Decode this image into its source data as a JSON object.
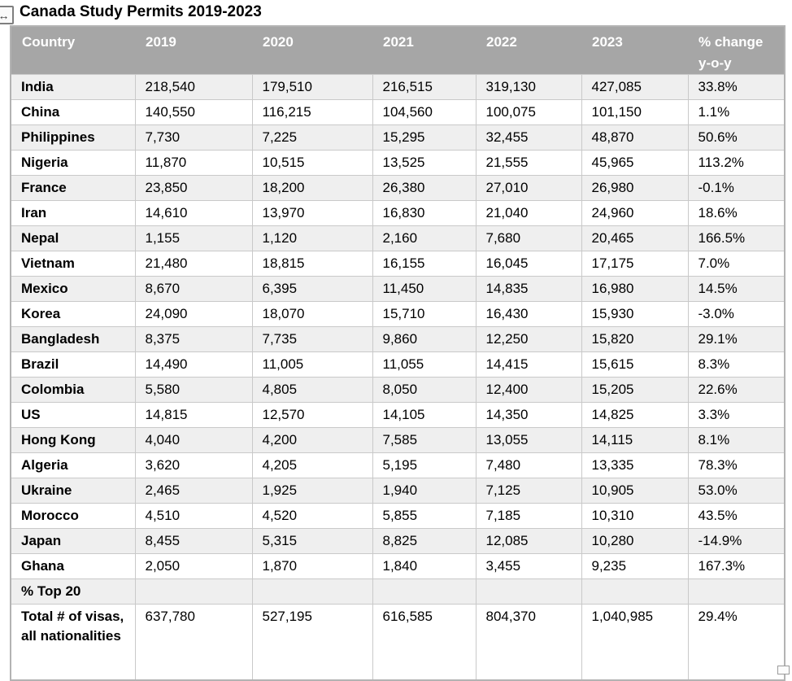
{
  "document": {
    "title": "Canada Study Permits 2019-2023"
  },
  "icons": {
    "table_move_handle": "↔",
    "table_resize_handle": ""
  },
  "table": {
    "headers": [
      "Country",
      "2019",
      "2020",
      "2021",
      "2022",
      "2023",
      "% change y-o-y"
    ],
    "rows": [
      [
        "India",
        "218,540",
        "179,510",
        "216,515",
        "319,130",
        "427,085",
        "33.8%"
      ],
      [
        "China",
        "140,550",
        "116,215",
        "104,560",
        "100,075",
        "101,150",
        "1.1%"
      ],
      [
        "Philippines",
        "7,730",
        "7,225",
        "15,295",
        "32,455",
        "48,870",
        "50.6%"
      ],
      [
        "Nigeria",
        "11,870",
        "10,515",
        "13,525",
        "21,555",
        "45,965",
        "113.2%"
      ],
      [
        "France",
        "23,850",
        "18,200",
        "26,380",
        "27,010",
        "26,980",
        "-0.1%"
      ],
      [
        "Iran",
        "14,610",
        "13,970",
        "16,830",
        "21,040",
        "24,960",
        "18.6%"
      ],
      [
        "Nepal",
        "1,155",
        "1,120",
        "2,160",
        "7,680",
        "20,465",
        "166.5%"
      ],
      [
        "Vietnam",
        "21,480",
        "18,815",
        "16,155",
        "16,045",
        "17,175",
        "7.0%"
      ],
      [
        "Mexico",
        "8,670",
        "6,395",
        "11,450",
        "14,835",
        "16,980",
        "14.5%"
      ],
      [
        "Korea",
        "24,090",
        "18,070",
        "15,710",
        "16,430",
        "15,930",
        "-3.0%"
      ],
      [
        "Bangladesh",
        "8,375",
        "7,735",
        "9,860",
        "12,250",
        "15,820",
        "29.1%"
      ],
      [
        "Brazil",
        "14,490",
        "11,005",
        "11,055",
        "14,415",
        "15,615",
        "8.3%"
      ],
      [
        "Colombia",
        "5,580",
        "4,805",
        "8,050",
        "12,400",
        "15,205",
        "22.6%"
      ],
      [
        "US",
        "14,815",
        "12,570",
        "14,105",
        "14,350",
        "14,825",
        "3.3%"
      ],
      [
        "Hong Kong",
        "4,040",
        "4,200",
        "7,585",
        "13,055",
        "14,115",
        "8.1%"
      ],
      [
        "Algeria",
        "3,620",
        "4,205",
        "5,195",
        "7,480",
        "13,335",
        "78.3%"
      ],
      [
        "Ukraine",
        "2,465",
        "1,925",
        "1,940",
        "7,125",
        "10,905",
        "53.0%"
      ],
      [
        "Morocco",
        "4,510",
        "4,520",
        "5,855",
        "7,185",
        "10,310",
        "43.5%"
      ],
      [
        "Japan",
        "8,455",
        "5,315",
        "8,825",
        "12,085",
        "10,280",
        "-14.9%"
      ],
      [
        "Ghana",
        "2,050",
        "1,870",
        "1,840",
        "3,455",
        "9,235",
        "167.3%"
      ],
      [
        "% Top 20",
        "",
        "",
        "",
        "",
        "",
        ""
      ],
      [
        "Total # of visas, all nationalities",
        "637,780",
        "527,195",
        "616,585",
        "804,370",
        "1,040,985",
        "29.4%"
      ]
    ]
  },
  "colors": {
    "header_bg": "#a6a6a6",
    "header_text": "#ffffff",
    "stripe_bg": "#efefef",
    "cell_border": "#c9c9c9",
    "outer_border": "#b3b3b3"
  }
}
